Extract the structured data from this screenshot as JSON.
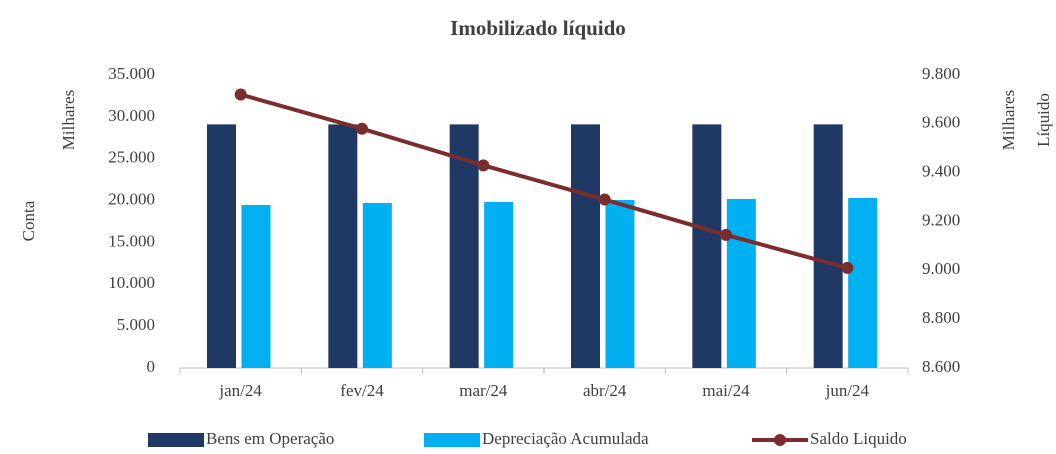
{
  "chart_data": {
    "type": "bar_line",
    "title": "Imobilizado líquido",
    "ylabel": "Conta",
    "ylabel_units": "Milhares",
    "y2label": "Líquido",
    "y2label_units": "Milhares",
    "categories": [
      "jan/24",
      "fev/24",
      "mar/24",
      "abr/24",
      "mai/24",
      "jun/24"
    ],
    "series": [
      {
        "name": "Bens em Operação",
        "color": "#1f3864",
        "type": "bar",
        "values": [
          29100,
          29100,
          29100,
          29100,
          29100,
          29100
        ]
      },
      {
        "name": "Depreciação Acumulada",
        "color": "#00b0f0",
        "type": "bar",
        "values": [
          19470,
          19710,
          19830,
          20070,
          20190,
          20310
        ]
      },
      {
        "name": "Saldo Liquido",
        "color": "#7b2c2c",
        "type": "line",
        "axis": "y2",
        "values": [
          9720,
          9580,
          9430,
          9290,
          9145,
          9010
        ]
      }
    ],
    "ylim": [
      0,
      35000
    ],
    "yticks": [
      0,
      {
        "value": 5000,
        "label": "5.000"
      },
      {
        "value": 10000,
        "label": "10.000"
      },
      {
        "value": 15000,
        "label": "15.000"
      },
      {
        "value": 20000,
        "label": "20.000"
      },
      {
        "value": 25000,
        "label": "25.000"
      },
      {
        "value": 30000,
        "label": "30.000"
      },
      {
        "value": 35000,
        "label": "35.000"
      }
    ],
    "y2lim": [
      8600,
      9800
    ],
    "y2ticks": [
      {
        "value": 8600,
        "label": "8.600"
      },
      {
        "value": 8800,
        "label": "8.800"
      },
      {
        "value": 9000,
        "label": "9.000"
      },
      {
        "value": 9200,
        "label": "9.200"
      },
      {
        "value": 9400,
        "label": "9.400"
      },
      {
        "value": 9600,
        "label": "9.600"
      },
      {
        "value": 9800,
        "label": "9.800"
      }
    ],
    "grid": false,
    "legend": "bottom"
  }
}
